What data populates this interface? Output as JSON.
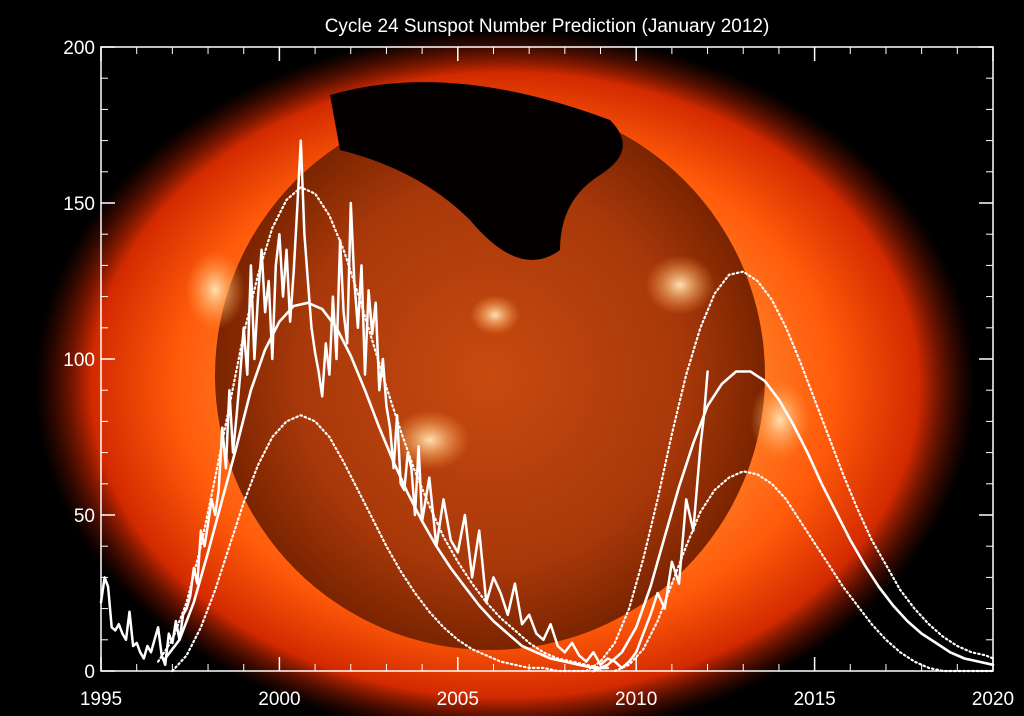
{
  "chart_data": {
    "type": "line",
    "title": "Cycle 24 Sunspot Number Prediction (January 2012)",
    "xlabel": "",
    "ylabel": "",
    "xlim": [
      1995,
      2020
    ],
    "ylim": [
      0,
      200
    ],
    "x_ticks": [
      1995,
      2000,
      2005,
      2010,
      2015,
      2020
    ],
    "y_ticks": [
      0,
      50,
      100,
      150,
      200
    ],
    "grid": false,
    "legend": "none",
    "background": "image of the Sun in X-ray, orange/red glow with dark corona hole",
    "colors": {
      "axes": "#ffffff",
      "series": "#ffffff",
      "sun_core": "#ff9a3c",
      "sun_edge": "#d22a00",
      "background": "#000000"
    },
    "series": [
      {
        "style": "solid-thin-jagged",
        "x": [
          1995.0,
          1995.1,
          1995.2,
          1995.3,
          1995.4,
          1995.5,
          1995.6,
          1995.7,
          1995.8,
          1995.9,
          1996.0,
          1996.1,
          1996.2,
          1996.3,
          1996.4,
          1996.5,
          1996.6,
          1996.7,
          1996.8,
          1996.9,
          1997.0,
          1997.1,
          1997.2,
          1997.3,
          1997.4,
          1997.5,
          1997.6,
          1997.7,
          1997.8,
          1997.9,
          1998.0,
          1998.1,
          1998.2,
          1998.3,
          1998.4,
          1998.5,
          1998.6,
          1998.7,
          1998.8,
          1998.9,
          1999.0,
          1999.1,
          1999.2,
          1999.3,
          1999.4,
          1999.5,
          1999.6,
          1999.7,
          1999.8,
          1999.9,
          2000.0,
          2000.1,
          2000.2,
          2000.3,
          2000.4,
          2000.5,
          2000.6,
          2000.7,
          2000.8,
          2000.9,
          2001.0,
          2001.1,
          2001.2,
          2001.3,
          2001.4,
          2001.5,
          2001.6,
          2001.7,
          2001.8,
          2001.9,
          2002.0,
          2002.1,
          2002.2,
          2002.3,
          2002.4,
          2002.5,
          2002.6,
          2002.7,
          2002.8,
          2002.9,
          2003.0,
          2003.1,
          2003.2,
          2003.3,
          2003.4,
          2003.5,
          2003.6,
          2003.7,
          2003.8,
          2003.9,
          2004.0,
          2004.2,
          2004.4,
          2004.6,
          2004.8,
          2005.0,
          2005.2,
          2005.4,
          2005.6,
          2005.8,
          2006.0,
          2006.2,
          2006.4,
          2006.6,
          2006.8,
          2007.0,
          2007.2,
          2007.4,
          2007.6,
          2007.8,
          2008.0,
          2008.2,
          2008.4,
          2008.6,
          2008.8,
          2009.0,
          2009.2,
          2009.4,
          2009.6,
          2009.8,
          2010.0,
          2010.2,
          2010.4,
          2010.6,
          2010.8,
          2011.0,
          2011.2,
          2011.4,
          2011.6,
          2011.8,
          2011.9,
          2012.0
        ],
        "values": [
          22,
          30,
          27,
          14,
          13,
          15,
          12,
          10,
          19,
          8,
          9,
          6,
          4,
          8,
          6,
          10,
          14,
          5,
          2,
          12,
          9,
          16,
          10,
          18,
          20,
          24,
          33,
          28,
          45,
          40,
          47,
          55,
          50,
          58,
          78,
          65,
          90,
          70,
          82,
          95,
          110,
          95,
          130,
          100,
          120,
          135,
          115,
          125,
          100,
          130,
          140,
          120,
          135,
          112,
          128,
          148,
          170,
          140,
          125,
          110,
          102,
          96,
          88,
          105,
          95,
          120,
          100,
          138,
          115,
          105,
          150,
          125,
          110,
          130,
          95,
          122,
          108,
          118,
          90,
          100,
          85,
          78,
          65,
          82,
          60,
          58,
          70,
          65,
          50,
          72,
          48,
          62,
          40,
          55,
          42,
          38,
          50,
          30,
          45,
          22,
          30,
          25,
          18,
          28,
          15,
          18,
          12,
          10,
          15,
          8,
          6,
          9,
          5,
          3,
          6,
          2,
          4,
          3,
          1,
          3,
          6,
          12,
          18,
          25,
          20,
          35,
          28,
          55,
          45,
          72,
          82,
          96
        ]
      },
      {
        "style": "solid-smooth",
        "x": [
          1996.8,
          1997.2,
          1997.6,
          1998.0,
          1998.4,
          1998.8,
          1999.2,
          1999.6,
          2000.0,
          2000.4,
          2000.8,
          2001.2,
          2001.6,
          2002.0,
          2002.4,
          2002.8,
          2003.2,
          2003.6,
          2004.0,
          2004.4,
          2004.8,
          2005.2,
          2005.6,
          2006.0,
          2006.4,
          2006.8,
          2007.2,
          2007.6,
          2008.0,
          2008.4,
          2008.8,
          2009.2
        ],
        "values": [
          4,
          10,
          22,
          38,
          55,
          72,
          90,
          103,
          112,
          117,
          118,
          116,
          110,
          101,
          90,
          78,
          67,
          57,
          48,
          40,
          33,
          27,
          21,
          16,
          12,
          8,
          6,
          4,
          3,
          2,
          1,
          1
        ]
      },
      {
        "style": "dotted",
        "x": [
          1996.6,
          1997.0,
          1997.4,
          1997.8,
          1998.2,
          1998.6,
          1999.0,
          1999.4,
          1999.8,
          2000.2,
          2000.6,
          2001.0,
          2001.4,
          2001.8,
          2002.2,
          2002.6,
          2003.0,
          2003.4,
          2003.8,
          2004.2,
          2004.6,
          2005.0,
          2005.4,
          2005.8,
          2006.2,
          2006.6,
          2007.0,
          2007.4,
          2007.8,
          2008.2,
          2008.6,
          2009.0
        ],
        "values": [
          3,
          10,
          22,
          40,
          62,
          85,
          108,
          127,
          142,
          151,
          155,
          153,
          146,
          135,
          121,
          106,
          91,
          77,
          64,
          53,
          43,
          35,
          28,
          22,
          17,
          13,
          9,
          6,
          4,
          3,
          2,
          1
        ]
      },
      {
        "style": "dotted",
        "x": [
          1997.0,
          1997.4,
          1997.8,
          1998.2,
          1998.6,
          1999.0,
          1999.4,
          1999.8,
          2000.2,
          2000.6,
          2001.0,
          2001.4,
          2001.8,
          2002.2,
          2002.6,
          2003.0,
          2003.4,
          2003.8,
          2004.2,
          2004.6,
          2005.0,
          2005.4,
          2005.8,
          2006.2,
          2006.6,
          2007.0,
          2007.4,
          2007.8,
          2008.2,
          2008.6
        ],
        "values": [
          0,
          5,
          14,
          26,
          40,
          54,
          66,
          75,
          80,
          82,
          80,
          75,
          67,
          58,
          49,
          40,
          32,
          25,
          19,
          14,
          10,
          7,
          5,
          3,
          2,
          1,
          1,
          0,
          0,
          0
        ]
      },
      {
        "style": "solid-smooth",
        "x": [
          2008.8,
          2009.2,
          2009.6,
          2010.0,
          2010.4,
          2010.8,
          2011.2,
          2011.6,
          2012.0,
          2012.4,
          2012.8,
          2013.2,
          2013.6,
          2014.0,
          2014.4,
          2014.8,
          2015.2,
          2015.6,
          2016.0,
          2016.4,
          2016.8,
          2017.2,
          2017.6,
          2018.0,
          2018.4,
          2018.8,
          2019.2,
          2019.6,
          2020.0
        ],
        "values": [
          0,
          2,
          6,
          14,
          27,
          43,
          59,
          73,
          85,
          92,
          96,
          96,
          93,
          87,
          79,
          70,
          60,
          51,
          42,
          34,
          27,
          21,
          16,
          12,
          9,
          6,
          4,
          3,
          2
        ]
      },
      {
        "style": "dotted",
        "x": [
          2008.6,
          2009.0,
          2009.4,
          2009.8,
          2010.2,
          2010.6,
          2011.0,
          2011.4,
          2011.8,
          2012.2,
          2012.6,
          2013.0,
          2013.4,
          2013.8,
          2014.2,
          2014.6,
          2015.0,
          2015.4,
          2015.8,
          2016.2,
          2016.6,
          2017.0,
          2017.4,
          2017.8,
          2018.2,
          2018.6,
          2019.0,
          2019.4,
          2019.8,
          2020.0
        ],
        "values": [
          0,
          3,
          9,
          20,
          36,
          55,
          76,
          95,
          110,
          121,
          127,
          128,
          125,
          119,
          110,
          99,
          87,
          75,
          63,
          52,
          42,
          34,
          26,
          20,
          15,
          11,
          8,
          6,
          5,
          4
        ]
      },
      {
        "style": "dotted",
        "x": [
          2009.4,
          2009.8,
          2010.2,
          2010.6,
          2011.0,
          2011.4,
          2011.8,
          2012.2,
          2012.6,
          2013.0,
          2013.4,
          2013.8,
          2014.2,
          2014.6,
          2015.0,
          2015.4,
          2015.8,
          2016.2,
          2016.6,
          2017.0,
          2017.4,
          2017.8,
          2018.2,
          2018.6,
          2019.0,
          2019.4,
          2019.8,
          2020.0
        ],
        "values": [
          0,
          2,
          7,
          16,
          28,
          40,
          51,
          58,
          62,
          64,
          63,
          60,
          55,
          48,
          41,
          34,
          27,
          21,
          15,
          10,
          6,
          3,
          1,
          0,
          0,
          0,
          0,
          0
        ]
      }
    ]
  }
}
